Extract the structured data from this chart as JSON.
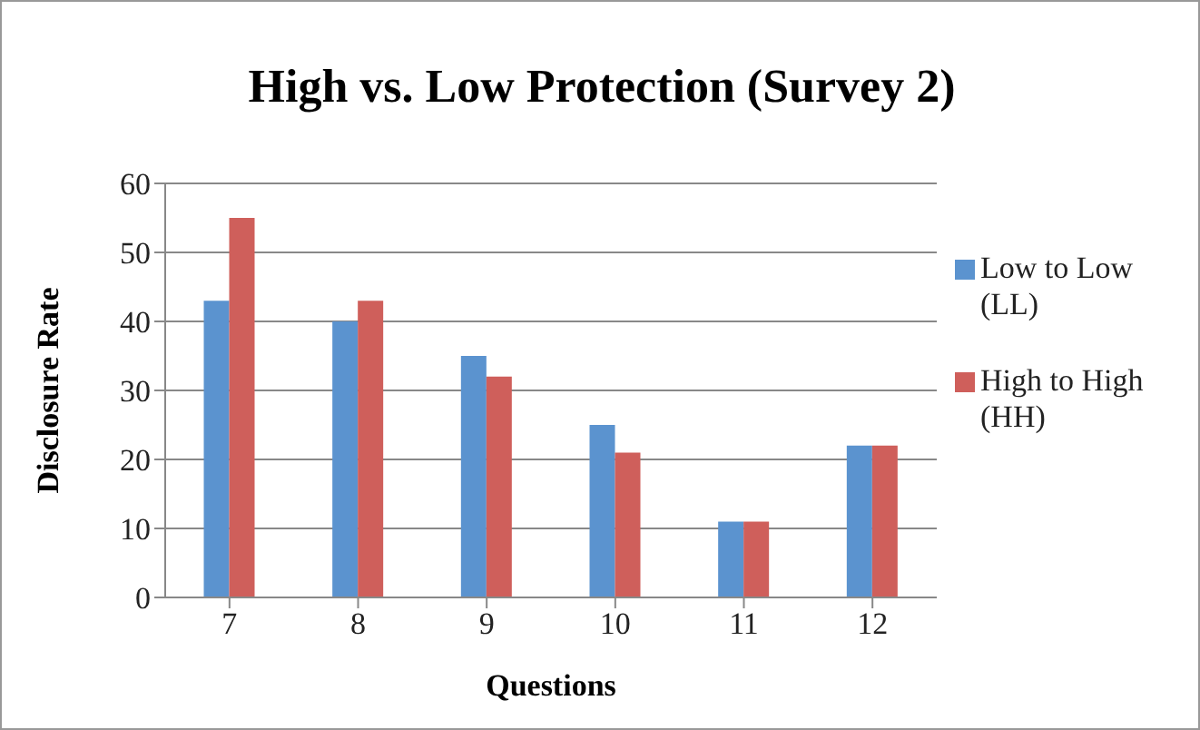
{
  "chart_data": {
    "type": "bar",
    "title": "High vs. Low Protection (Survey 2)",
    "xlabel": "Questions",
    "ylabel": "Disclosure Rate",
    "categories": [
      "7",
      "8",
      "9",
      "10",
      "11",
      "12"
    ],
    "series": [
      {
        "name": "Low to Low (LL)",
        "color": "#5b93cf",
        "values": [
          43,
          40,
          35,
          25,
          11,
          22
        ]
      },
      {
        "name": "High to High (HH)",
        "color": "#cf5f5b",
        "values": [
          55,
          43,
          32,
          21,
          11,
          22
        ]
      }
    ],
    "ylim": [
      0,
      60
    ],
    "yticks": [
      0,
      10,
      20,
      30,
      40,
      50,
      60
    ],
    "grid": "y",
    "legend": "right"
  }
}
